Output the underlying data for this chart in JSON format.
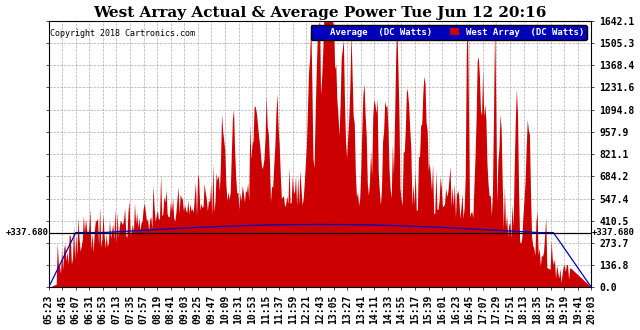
{
  "title": "West Array Actual & Average Power Tue Jun 12 20:16",
  "copyright": "Copyright 2018 Cartronics.com",
  "legend_labels": [
    "Average  (DC Watts)",
    "West Array  (DC Watts)"
  ],
  "legend_colors": [
    "#0000cc",
    "#cc0000"
  ],
  "ymin": 0.0,
  "ymax": 1642.1,
  "yticks": [
    0.0,
    136.8,
    273.7,
    410.5,
    547.4,
    684.2,
    821.1,
    957.9,
    1094.8,
    1231.6,
    1368.4,
    1505.3,
    1642.1
  ],
  "hline_y": 337.68,
  "background_color": "#ffffff",
  "grid_color": "#999999",
  "fill_color": "#cc0000",
  "avg_line_color": "#0000cc",
  "title_fontsize": 11,
  "tick_fontsize": 7,
  "time_labels": [
    "05:23",
    "05:45",
    "06:07",
    "06:31",
    "06:53",
    "07:13",
    "07:35",
    "07:57",
    "08:19",
    "08:41",
    "09:03",
    "09:25",
    "09:47",
    "10:09",
    "10:31",
    "10:53",
    "11:15",
    "11:37",
    "11:59",
    "12:21",
    "12:43",
    "13:05",
    "13:27",
    "13:41",
    "14:11",
    "14:33",
    "14:55",
    "15:17",
    "15:39",
    "16:01",
    "16:23",
    "16:45",
    "17:07",
    "17:29",
    "17:51",
    "18:13",
    "18:35",
    "18:57",
    "19:19",
    "19:41",
    "20:03"
  ]
}
